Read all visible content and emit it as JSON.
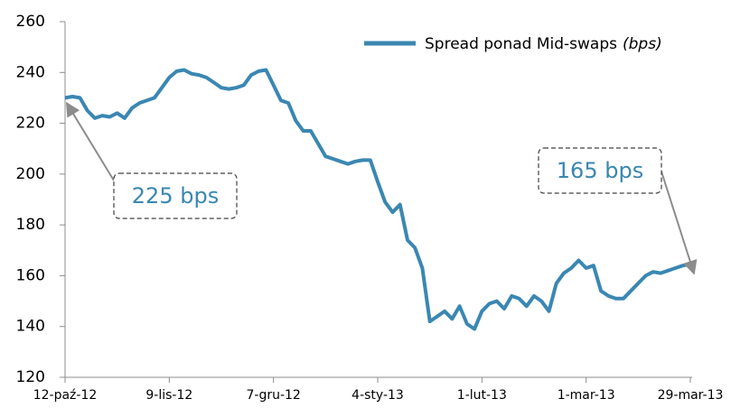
{
  "chart_data": {
    "type": "line",
    "categories": [
      "12-paź-12",
      null,
      null,
      null,
      null,
      null,
      null,
      null,
      null,
      null,
      null,
      null,
      null,
      null,
      "9-lis-12",
      null,
      null,
      null,
      null,
      null,
      null,
      null,
      null,
      null,
      null,
      null,
      null,
      null,
      "7-gru-12",
      null,
      null,
      null,
      null,
      null,
      null,
      null,
      null,
      null,
      null,
      null,
      null,
      null,
      "4-sty-13",
      null,
      null,
      null,
      null,
      null,
      null,
      null,
      null,
      null,
      null,
      null,
      null,
      null,
      "1-lut-13",
      null,
      null,
      null,
      null,
      null,
      null,
      null,
      null,
      null,
      null,
      null,
      null,
      null,
      "1-mar-13",
      null,
      null,
      null,
      null,
      null,
      null,
      null,
      null,
      null,
      null,
      null,
      null,
      null,
      "29-mar-13"
    ],
    "series": [
      {
        "name": "Spread ponad Mid-swaps",
        "unit": "(bps)",
        "color": "#3a87b2",
        "values": [
          230,
          230.5,
          230,
          225,
          222,
          223,
          222.5,
          224,
          222,
          226,
          228,
          229,
          230,
          234,
          238,
          240.5,
          241,
          239.5,
          239,
          238,
          236,
          234,
          233.5,
          234,
          235,
          239,
          240.5,
          241,
          235,
          229,
          228,
          221,
          217,
          217,
          212,
          207,
          206,
          205,
          204,
          205,
          205.5,
          205.5,
          197,
          189,
          185,
          188,
          174,
          171,
          163,
          142,
          144,
          146,
          143,
          148,
          141,
          139,
          146,
          149,
          150,
          147,
          152,
          151,
          148,
          152,
          150,
          146,
          157,
          161,
          163,
          166,
          163,
          164,
          154,
          152,
          151,
          151,
          154,
          157,
          160,
          161.5,
          161,
          162,
          163,
          164,
          164.5
        ]
      }
    ],
    "ylim": [
      120,
      260
    ],
    "yticks": [
      120,
      140,
      160,
      180,
      200,
      220,
      240,
      260
    ],
    "legend": "upper right",
    "grid": false,
    "annotations": [
      {
        "text": "225 bps"
      },
      {
        "text": "165 bps"
      }
    ]
  }
}
